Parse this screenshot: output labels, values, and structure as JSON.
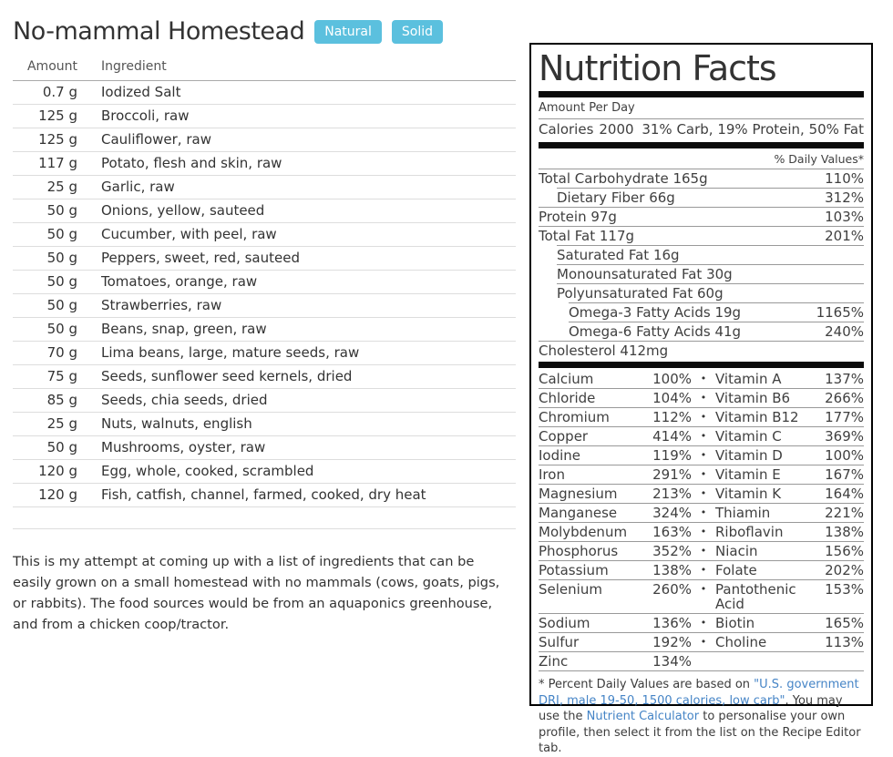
{
  "page": {
    "title": "No-mammal Homestead",
    "tags": [
      "Natural",
      "Solid"
    ],
    "tag_color": "#5bc0de",
    "link_color": "#4584c6",
    "description": "This is my attempt at coming up with a list of ingredients that can be easily grown on a small homestead with no mammals (cows, goats, pigs, or rabbits). The food sources would be from an aquaponics greenhouse, and from a chicken coop/tractor."
  },
  "ingredients": {
    "headers": {
      "amount": "Amount",
      "ingredient": "Ingredient"
    },
    "rows": [
      {
        "amount": "0.7 g",
        "name": "Iodized Salt"
      },
      {
        "amount": "125 g",
        "name": "Broccoli, raw"
      },
      {
        "amount": "125 g",
        "name": "Cauliflower, raw"
      },
      {
        "amount": "117 g",
        "name": "Potato, flesh and skin, raw"
      },
      {
        "amount": "25 g",
        "name": "Garlic, raw"
      },
      {
        "amount": "50 g",
        "name": "Onions, yellow, sauteed"
      },
      {
        "amount": "50 g",
        "name": "Cucumber, with peel, raw"
      },
      {
        "amount": "50 g",
        "name": "Peppers, sweet, red, sauteed"
      },
      {
        "amount": "50 g",
        "name": "Tomatoes, orange, raw"
      },
      {
        "amount": "50 g",
        "name": "Strawberries, raw"
      },
      {
        "amount": "50 g",
        "name": "Beans, snap, green, raw"
      },
      {
        "amount": "70 g",
        "name": "Lima beans, large, mature seeds, raw"
      },
      {
        "amount": "75 g",
        "name": "Seeds, sunflower seed kernels, dried"
      },
      {
        "amount": "85 g",
        "name": "Seeds, chia seeds, dried"
      },
      {
        "amount": "25 g",
        "name": "Nuts, walnuts, english"
      },
      {
        "amount": "50 g",
        "name": "Mushrooms, oyster, raw"
      },
      {
        "amount": "120 g",
        "name": "Egg, whole, cooked, scrambled"
      },
      {
        "amount": "120 g",
        "name": "Fish, catfish, channel, farmed, cooked, dry heat"
      }
    ]
  },
  "nutrition": {
    "title": "Nutrition Facts",
    "amount_per_day": "Amount Per Day",
    "calories_label": "Calories",
    "calories_value": "2000",
    "macro_split": "31% Carb, 19% Protein, 50% Fat",
    "daily_values_header": "% Daily Values*",
    "nutrients": [
      {
        "label": "Total Carbohydrate 165g",
        "dv": "110%",
        "indent": 0
      },
      {
        "label": "Dietary Fiber 66g",
        "dv": "312%",
        "indent": 1
      },
      {
        "label": "Protein 97g",
        "dv": "103%",
        "indent": 0
      },
      {
        "label": "Total Fat 117g",
        "dv": "201%",
        "indent": 0
      },
      {
        "label": "Saturated Fat 16g",
        "dv": "",
        "indent": 1
      },
      {
        "label": "Monounsaturated Fat 30g",
        "dv": "",
        "indent": 1
      },
      {
        "label": "Polyunsaturated Fat 60g",
        "dv": "",
        "indent": 1
      },
      {
        "label": "Omega-3 Fatty Acids 19g",
        "dv": "1165%",
        "indent": 2
      },
      {
        "label": "Omega-6 Fatty Acids 41g",
        "dv": "240%",
        "indent": 2
      },
      {
        "label": "Cholesterol 412mg",
        "dv": "",
        "indent": 0
      }
    ],
    "micros": [
      {
        "left": "Calcium",
        "left_v": "100%",
        "sep": "•",
        "right": "Vitamin A",
        "right_v": "137%"
      },
      {
        "left": "Chloride",
        "left_v": "104%",
        "sep": "•",
        "right": "Vitamin B6",
        "right_v": "266%"
      },
      {
        "left": "Chromium",
        "left_v": "112%",
        "sep": "•",
        "right": "Vitamin B12",
        "right_v": "177%"
      },
      {
        "left": "Copper",
        "left_v": "414%",
        "sep": "•",
        "right": "Vitamin C",
        "right_v": "369%"
      },
      {
        "left": "Iodine",
        "left_v": "119%",
        "sep": "•",
        "right": "Vitamin D",
        "right_v": "100%"
      },
      {
        "left": "Iron",
        "left_v": "291%",
        "sep": "•",
        "right": "Vitamin E",
        "right_v": "167%"
      },
      {
        "left": "Magnesium",
        "left_v": "213%",
        "sep": "•",
        "right": "Vitamin K",
        "right_v": "164%"
      },
      {
        "left": "Manganese",
        "left_v": "324%",
        "sep": "•",
        "right": "Thiamin",
        "right_v": "221%"
      },
      {
        "left": "Molybdenum",
        "left_v": "163%",
        "sep": "•",
        "right": "Riboflavin",
        "right_v": "138%"
      },
      {
        "left": "Phosphorus",
        "left_v": "352%",
        "sep": "•",
        "right": "Niacin",
        "right_v": "156%"
      },
      {
        "left": "Potassium",
        "left_v": "138%",
        "sep": "•",
        "right": "Folate",
        "right_v": "202%"
      },
      {
        "left": "Selenium",
        "left_v": "260%",
        "sep": "•",
        "right": "Pantothenic Acid",
        "right_v": "153%"
      },
      {
        "left": "Sodium",
        "left_v": "136%",
        "sep": "•",
        "right": "Biotin",
        "right_v": "165%"
      },
      {
        "left": "Sulfur",
        "left_v": "192%",
        "sep": "•",
        "right": "Choline",
        "right_v": "113%"
      },
      {
        "left": "Zinc",
        "left_v": "134%",
        "sep": "",
        "right": "",
        "right_v": ""
      }
    ],
    "footnote": {
      "prefix": "* Percent Daily Values are based on ",
      "link1": "\"U.S. government DRI, male 19-50, 1500 calories, low carb\"",
      "middle": ". You may use the ",
      "link2": "Nutrient Calculator",
      "suffix": " to personalise your own profile, then select it from the list on the Recipe Editor tab."
    }
  }
}
